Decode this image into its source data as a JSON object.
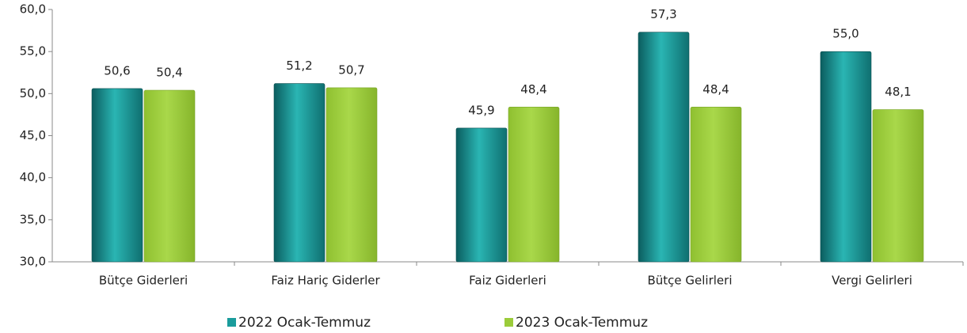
{
  "chart_data": {
    "type": "bar",
    "categories": [
      "Bütçe Giderleri",
      "Faiz Hariç Giderler",
      "Faiz Giderleri",
      "Bütçe Gelirleri",
      "Vergi Gelirleri"
    ],
    "series": [
      {
        "name": "2022 Ocak-Temmuz",
        "color": "#1a9c9c",
        "values": [
          50.6,
          51.2,
          45.9,
          57.3,
          55.0
        ],
        "value_labels": [
          "50,6",
          "51,2",
          "45,9",
          "57,3",
          "55,0"
        ]
      },
      {
        "name": "2023 Ocak-Temmuz",
        "color": "#9bcc3a",
        "values": [
          50.4,
          50.7,
          48.4,
          48.4,
          48.1
        ],
        "value_labels": [
          "50,4",
          "50,7",
          "48,4",
          "48,4",
          "48,1"
        ]
      }
    ],
    "ylim": [
      30,
      60
    ],
    "yticks": [
      {
        "value": 30,
        "label": "30,0"
      },
      {
        "value": 35,
        "label": "35,0"
      },
      {
        "value": 40,
        "label": "40,0"
      },
      {
        "value": 45,
        "label": "45,0"
      },
      {
        "value": 50,
        "label": "50,0"
      },
      {
        "value": 55,
        "label": "55,0"
      },
      {
        "value": 60,
        "label": "60,0"
      }
    ],
    "legend": "bottom"
  }
}
